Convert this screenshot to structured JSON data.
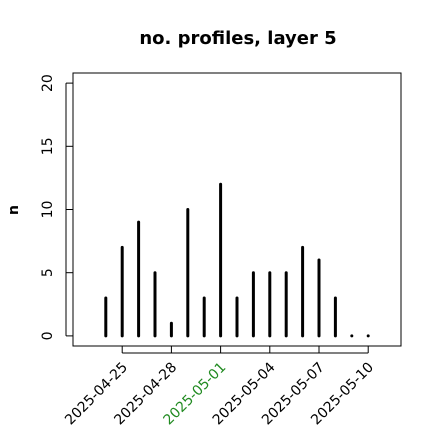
{
  "chart_data": {
    "type": "spike",
    "title": "no. profiles, layer 5",
    "y_label": "n",
    "x": [
      "2025-04-24",
      "2025-04-25",
      "2025-04-26",
      "2025-04-27",
      "2025-04-28",
      "2025-04-29",
      "2025-04-30",
      "2025-05-01",
      "2025-05-02",
      "2025-05-03",
      "2025-05-04",
      "2025-05-05",
      "2025-05-06",
      "2025-05-07",
      "2025-05-08",
      "2025-05-09",
      "2025-05-10"
    ],
    "values": [
      3,
      7,
      9,
      5,
      1,
      10,
      3,
      12,
      3,
      5,
      5,
      5,
      7,
      6,
      3,
      0,
      0
    ],
    "color": "#000000",
    "xlim": [
      "2025-04-22",
      "2025-05-12"
    ],
    "xticks": [
      "2025-04-25",
      "2025-04-28",
      "2025-05-01",
      "2025-05-04",
      "2025-05-07",
      "2025-05-10"
    ],
    "xtick_colors": [
      "#000000",
      "#000000",
      "#228b22",
      "#000000",
      "#000000",
      "#000000"
    ],
    "ylim": [
      -0.8,
      20.8
    ],
    "yticks": [
      0,
      5,
      10,
      15,
      20
    ]
  }
}
